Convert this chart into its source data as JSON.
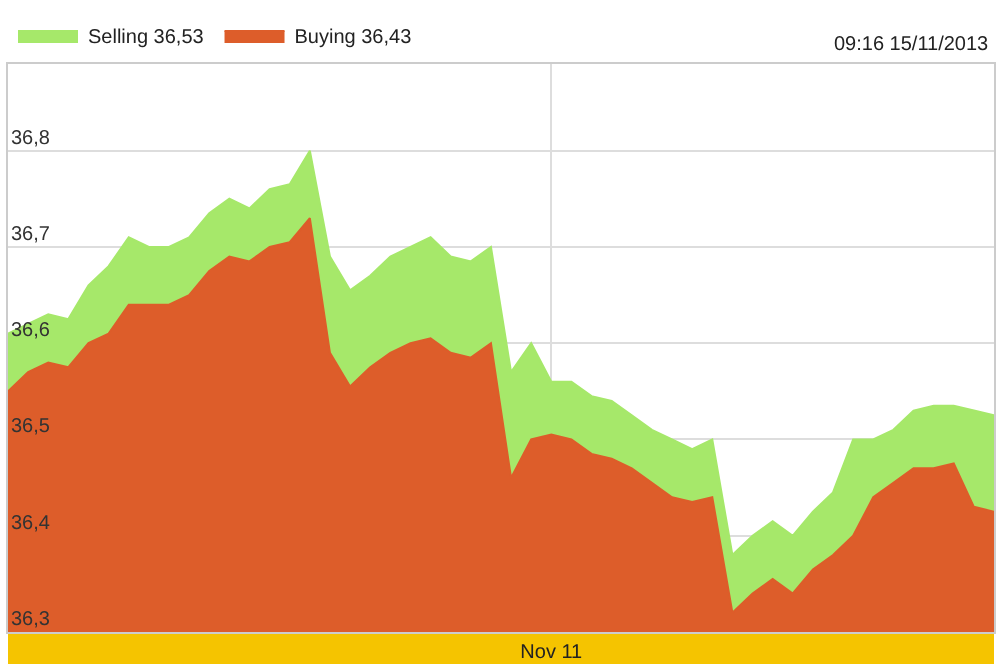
{
  "chart_data": {
    "type": "area",
    "annotations": [
      "09:16 15/11/2013"
    ],
    "categories": [
      null,
      null,
      null,
      null,
      null,
      null,
      null,
      null,
      null,
      null,
      null,
      null,
      null,
      null,
      null,
      null,
      null,
      null,
      null,
      null,
      null,
      null,
      null,
      null,
      null,
      null,
      null,
      "Nov 11",
      null,
      null,
      null,
      null,
      null,
      null,
      null,
      null,
      null,
      null,
      null,
      null,
      null,
      null,
      null,
      null,
      null,
      null,
      null,
      null,
      null,
      null
    ],
    "ylim": [
      36.3,
      36.89
    ],
    "yticks": [
      {
        "value": 36.3,
        "label": "36,3"
      },
      {
        "value": 36.4,
        "label": "36,4"
      },
      {
        "value": 36.5,
        "label": "36,5"
      },
      {
        "value": 36.6,
        "label": "36,6"
      },
      {
        "value": 36.7,
        "label": "36,7"
      },
      {
        "value": 36.8,
        "label": "36,8"
      }
    ],
    "grid": true,
    "legend": "top left",
    "marker": "none",
    "line_style": "solid",
    "series": [
      {
        "name": "Selling 36,53",
        "color": "#a6e86a",
        "values": [
          36.61,
          36.62,
          36.63,
          36.625,
          36.66,
          36.68,
          36.71,
          36.7,
          36.7,
          36.71,
          36.735,
          36.75,
          36.74,
          36.76,
          36.765,
          36.8,
          36.69,
          36.655,
          36.67,
          36.69,
          36.7,
          36.71,
          36.69,
          36.685,
          36.7,
          36.57,
          36.6,
          36.56,
          36.56,
          36.545,
          36.54,
          36.525,
          36.51,
          36.5,
          36.49,
          36.5,
          36.38,
          36.4,
          36.415,
          36.4,
          36.425,
          36.445,
          36.5,
          36.5,
          36.51,
          36.53,
          36.535,
          36.535,
          36.53,
          36.525
        ]
      },
      {
        "name": "Buying 36,43",
        "color": "#dd5d2a",
        "values": [
          36.55,
          36.57,
          36.58,
          36.575,
          36.6,
          36.61,
          36.64,
          36.64,
          36.64,
          36.65,
          36.675,
          36.69,
          36.685,
          36.7,
          36.705,
          36.73,
          36.59,
          36.555,
          36.575,
          36.59,
          36.6,
          36.605,
          36.59,
          36.585,
          36.6,
          36.46,
          36.5,
          36.505,
          36.5,
          36.485,
          36.48,
          36.47,
          36.455,
          36.44,
          36.435,
          36.44,
          36.32,
          36.34,
          36.355,
          36.34,
          36.365,
          36.38,
          36.4,
          36.44,
          36.455,
          36.47,
          36.47,
          36.475,
          36.43,
          36.425
        ]
      }
    ]
  }
}
